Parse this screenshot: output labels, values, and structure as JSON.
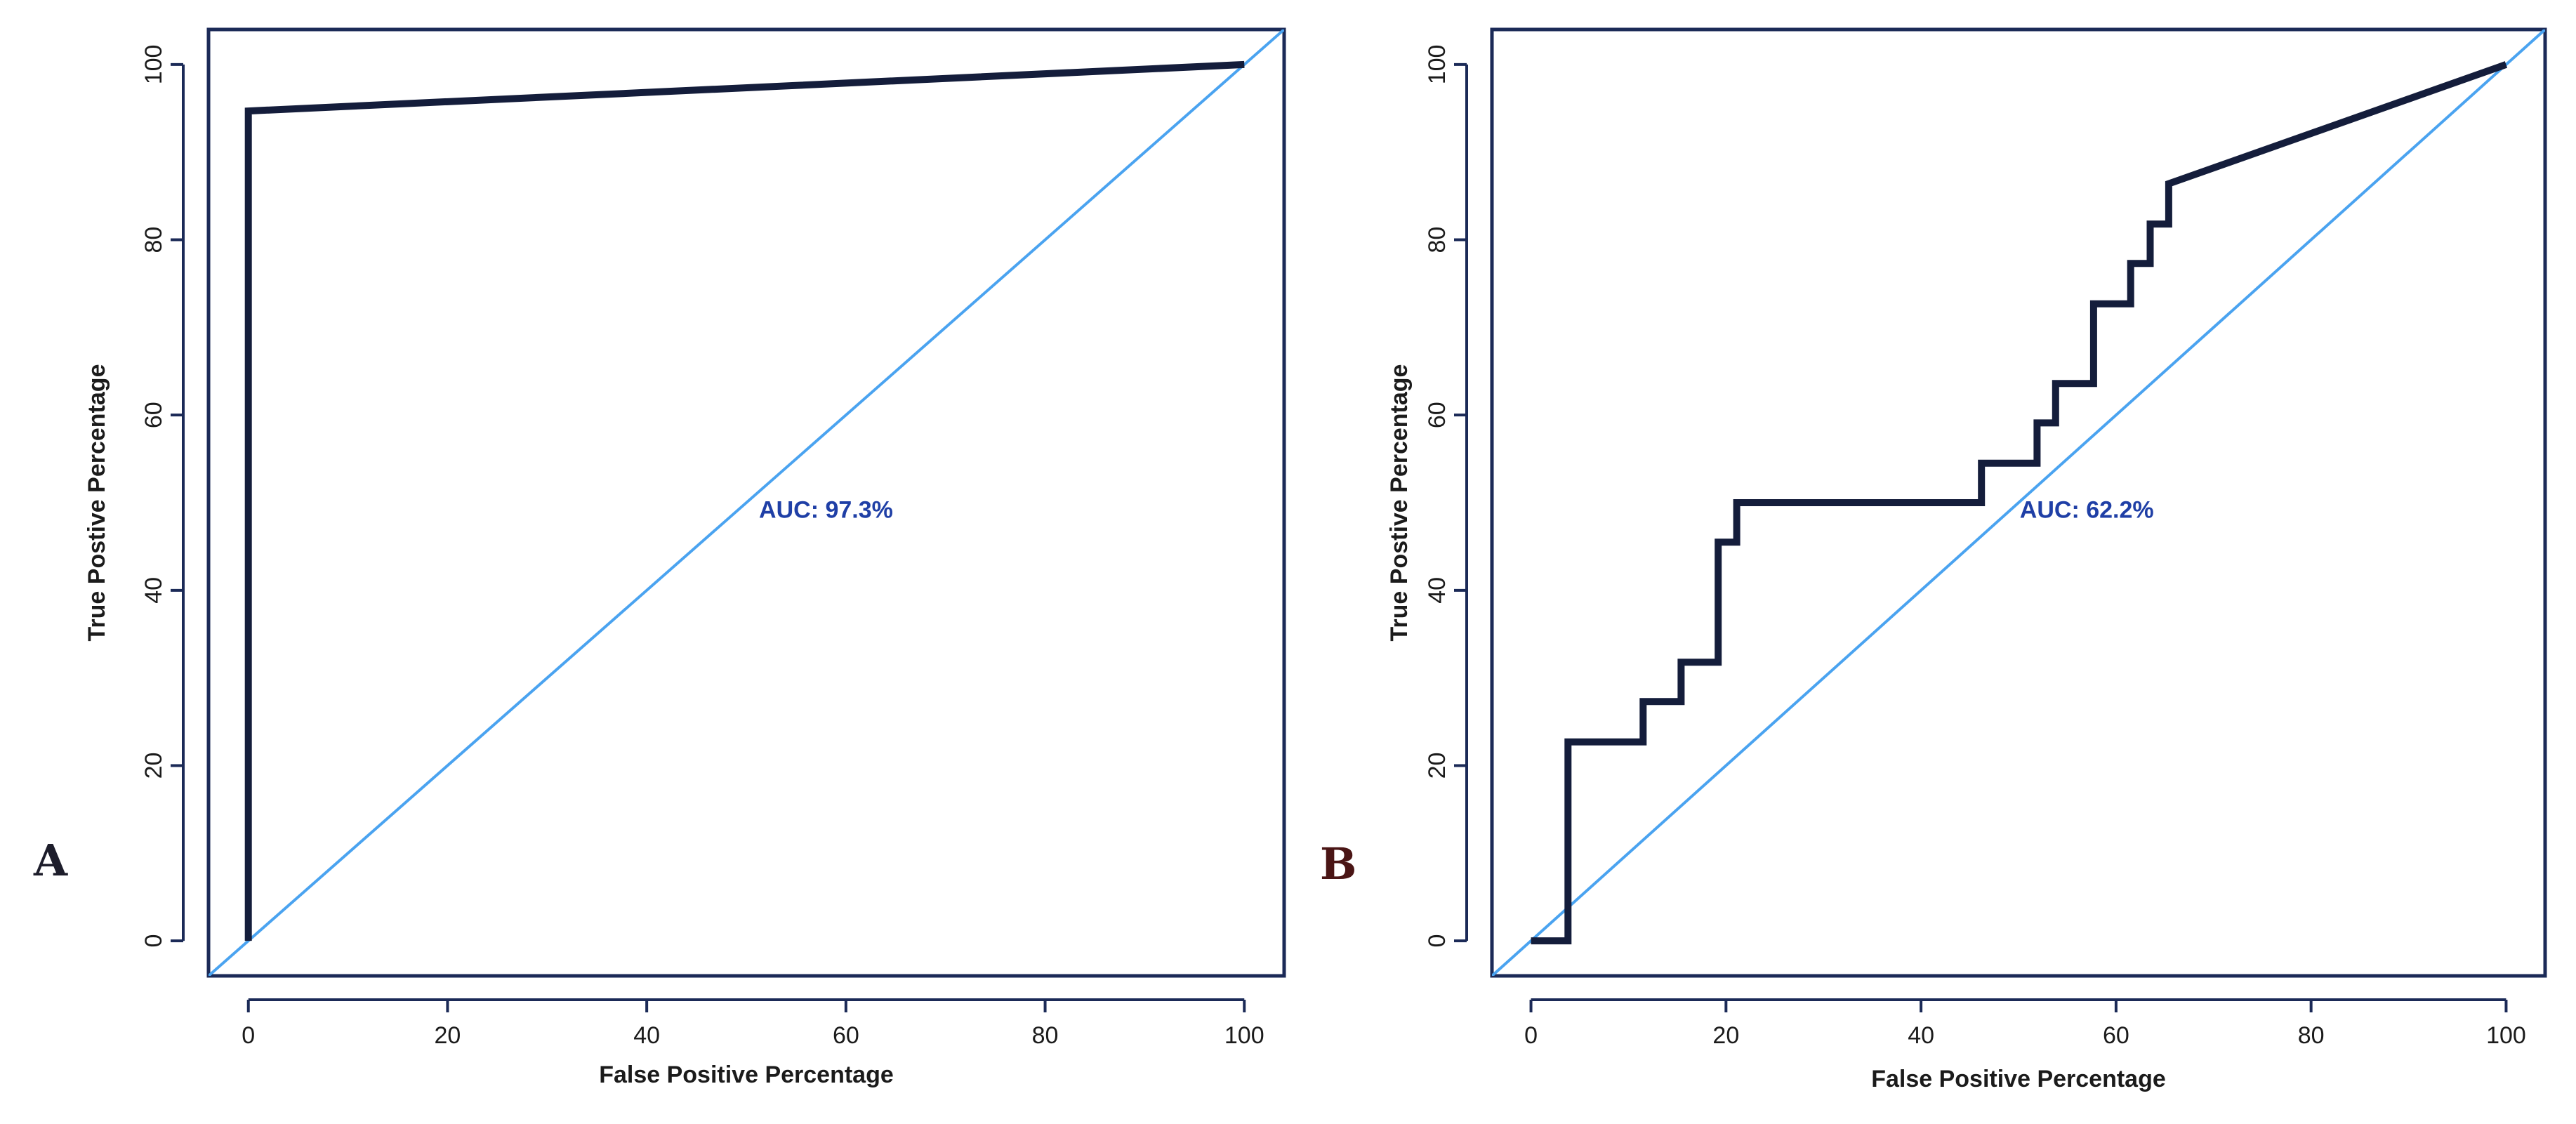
{
  "chart_data": [
    {
      "type": "line",
      "panel_label": "A",
      "xlabel": "False Positive Percentage",
      "ylabel": "True Postive Percentage",
      "xlim": [
        -4,
        104
      ],
      "ylim": [
        -4,
        104
      ],
      "xticks": [
        0,
        20,
        40,
        60,
        80,
        100
      ],
      "yticks": [
        0,
        20,
        40,
        60,
        80,
        100
      ],
      "annotation": {
        "text": "AUC: 97.3%",
        "x": 58,
        "y": 49
      },
      "series": [
        {
          "name": "ROC curve",
          "x": [
            0,
            0,
            100
          ],
          "y": [
            0,
            94.7,
            100
          ]
        },
        {
          "name": "Reference diagonal",
          "x": [
            -4,
            104
          ],
          "y": [
            -4,
            104
          ]
        }
      ]
    },
    {
      "type": "line",
      "panel_label": "B",
      "xlabel": "False Positive Percentage",
      "ylabel": "True Postive Percentage",
      "xlim": [
        -4,
        104
      ],
      "ylim": [
        -4,
        104
      ],
      "xticks": [
        0,
        20,
        40,
        60,
        80,
        100
      ],
      "yticks": [
        0,
        20,
        40,
        60,
        80,
        100
      ],
      "annotation": {
        "text": "AUC: 62.2%",
        "x": 57,
        "y": 49
      },
      "series": [
        {
          "name": "ROC curve",
          "x": [
            0,
            3.8,
            3.8,
            11.5,
            11.5,
            15.4,
            15.4,
            19.2,
            19.2,
            21.1,
            21.1,
            46.2,
            46.2,
            51.9,
            51.9,
            53.8,
            53.8,
            57.7,
            57.7,
            61.5,
            61.5,
            63.5,
            63.5,
            65.4,
            65.4,
            100
          ],
          "y": [
            0,
            0,
            22.7,
            22.7,
            27.3,
            27.3,
            31.8,
            31.8,
            45.5,
            45.5,
            50,
            50,
            54.5,
            54.5,
            59.1,
            59.1,
            63.6,
            63.6,
            72.7,
            72.7,
            77.3,
            77.3,
            81.8,
            81.8,
            86.4,
            100
          ]
        },
        {
          "name": "Reference diagonal",
          "x": [
            -4,
            104
          ],
          "y": [
            -4,
            104
          ]
        }
      ]
    }
  ],
  "colors": {
    "curve": "#141d3b",
    "reference": "#4aa3f0",
    "auc_text": "#1f3fa6",
    "panel_a_label": "#1d1d2b",
    "panel_b_label": "#4a1515"
  }
}
